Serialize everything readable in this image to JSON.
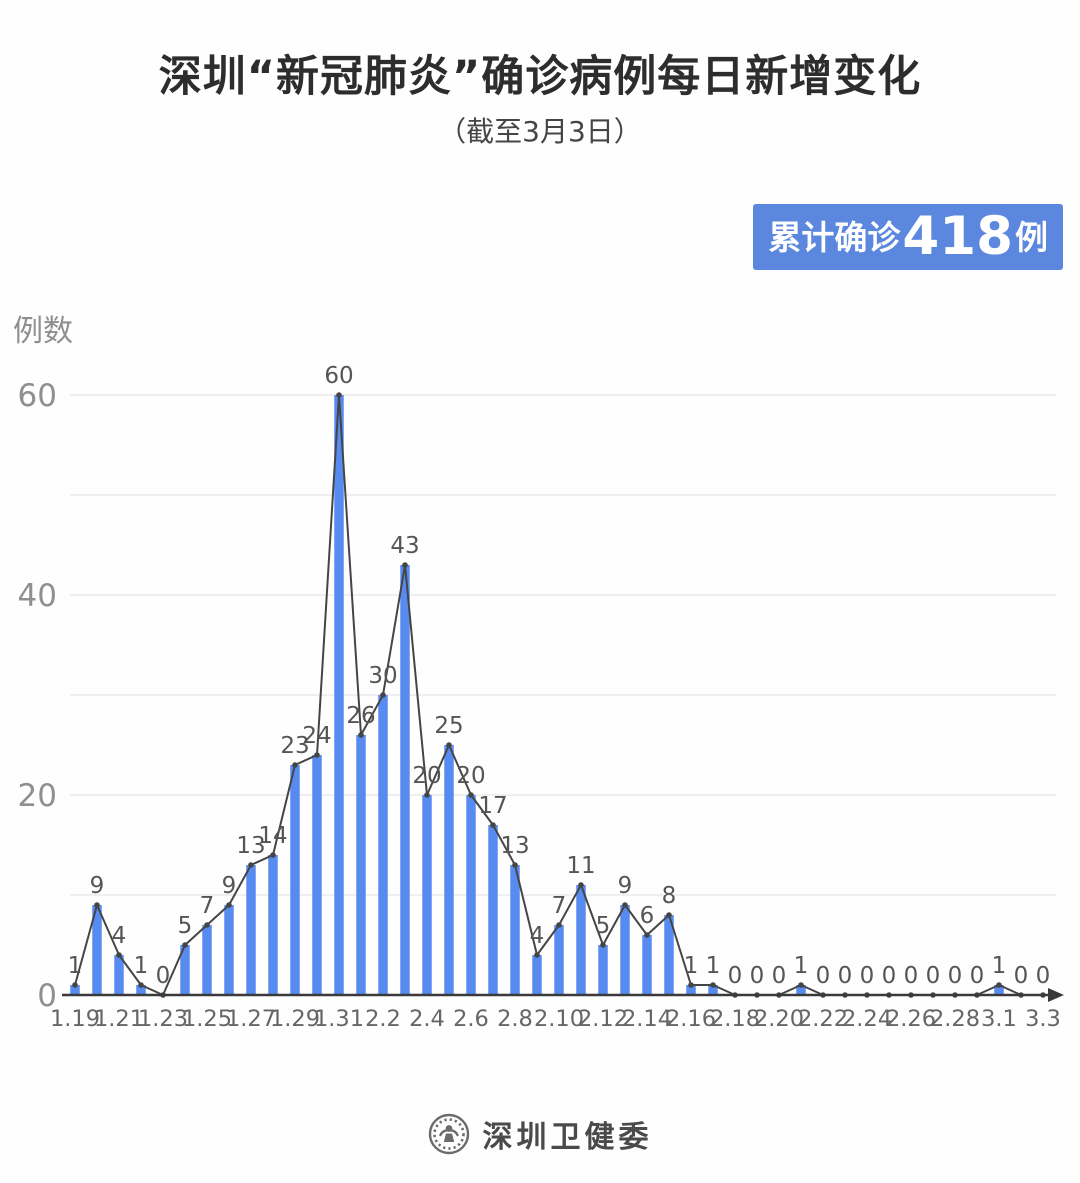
{
  "page": {
    "title": "深圳“新冠肺炎”确诊病例每日新增变化",
    "subtitle": "（截至3月3日）",
    "badge": {
      "prefix": "累计确诊",
      "number": "418",
      "suffix": "例"
    },
    "footer": {
      "org_name": "深圳卫健委",
      "logo": "shenzhen-health-commission-emblem"
    }
  },
  "colors": {
    "background": "#fefefe",
    "bar": "#588bf0",
    "badge_bg": "#5c87de",
    "badge_text": "#ffffff",
    "line": "#454545",
    "marker": "#454545",
    "axis": "#3a3a3a",
    "grid": "#eaeaea",
    "axis_tick_text": "#8f8f8f",
    "x_tick_text": "#666666",
    "value_label_text": "#555555",
    "title_text": "#2d2d2d",
    "subtitle_text": "#454545",
    "footer_text": "#4a4a4a"
  },
  "chart_data": {
    "type": "bar",
    "line_overlay": true,
    "markers_on_points": true,
    "value_labels_shown": true,
    "title": "深圳“新冠肺炎”确诊病例每日新增变化",
    "subtitle": "（截至3月3日）",
    "xlabel": "",
    "ylabel": "例数",
    "ylim": [
      0,
      60
    ],
    "y_ticks": [
      0,
      20,
      40,
      60
    ],
    "grid_interval": 10,
    "grid": "horizontal",
    "legend_position": "none",
    "x_tick_shown_every": 2,
    "categories": [
      "1.19",
      "1.20",
      "1.21",
      "1.22",
      "1.23",
      "1.24",
      "1.25",
      "1.26",
      "1.27",
      "1.28",
      "1.29",
      "1.30",
      "1.31",
      "2.1",
      "2.2",
      "2.3",
      "2.4",
      "2.5",
      "2.6",
      "2.7",
      "2.8",
      "2.9",
      "2.10",
      "2.11",
      "2.12",
      "2.13",
      "2.14",
      "2.15",
      "2.16",
      "2.17",
      "2.18",
      "2.19",
      "2.20",
      "2.21",
      "2.22",
      "2.23",
      "2.24",
      "2.25",
      "2.26",
      "2.27",
      "2.28",
      "2.29",
      "3.1",
      "3.2",
      "3.3"
    ],
    "values": [
      1,
      9,
      4,
      1,
      0,
      5,
      7,
      9,
      13,
      14,
      23,
      24,
      60,
      26,
      30,
      43,
      20,
      25,
      20,
      17,
      13,
      4,
      7,
      11,
      5,
      9,
      6,
      8,
      1,
      1,
      0,
      0,
      0,
      1,
      0,
      0,
      0,
      0,
      0,
      0,
      0,
      0,
      1,
      0,
      0
    ],
    "cumulative_total": 418
  }
}
